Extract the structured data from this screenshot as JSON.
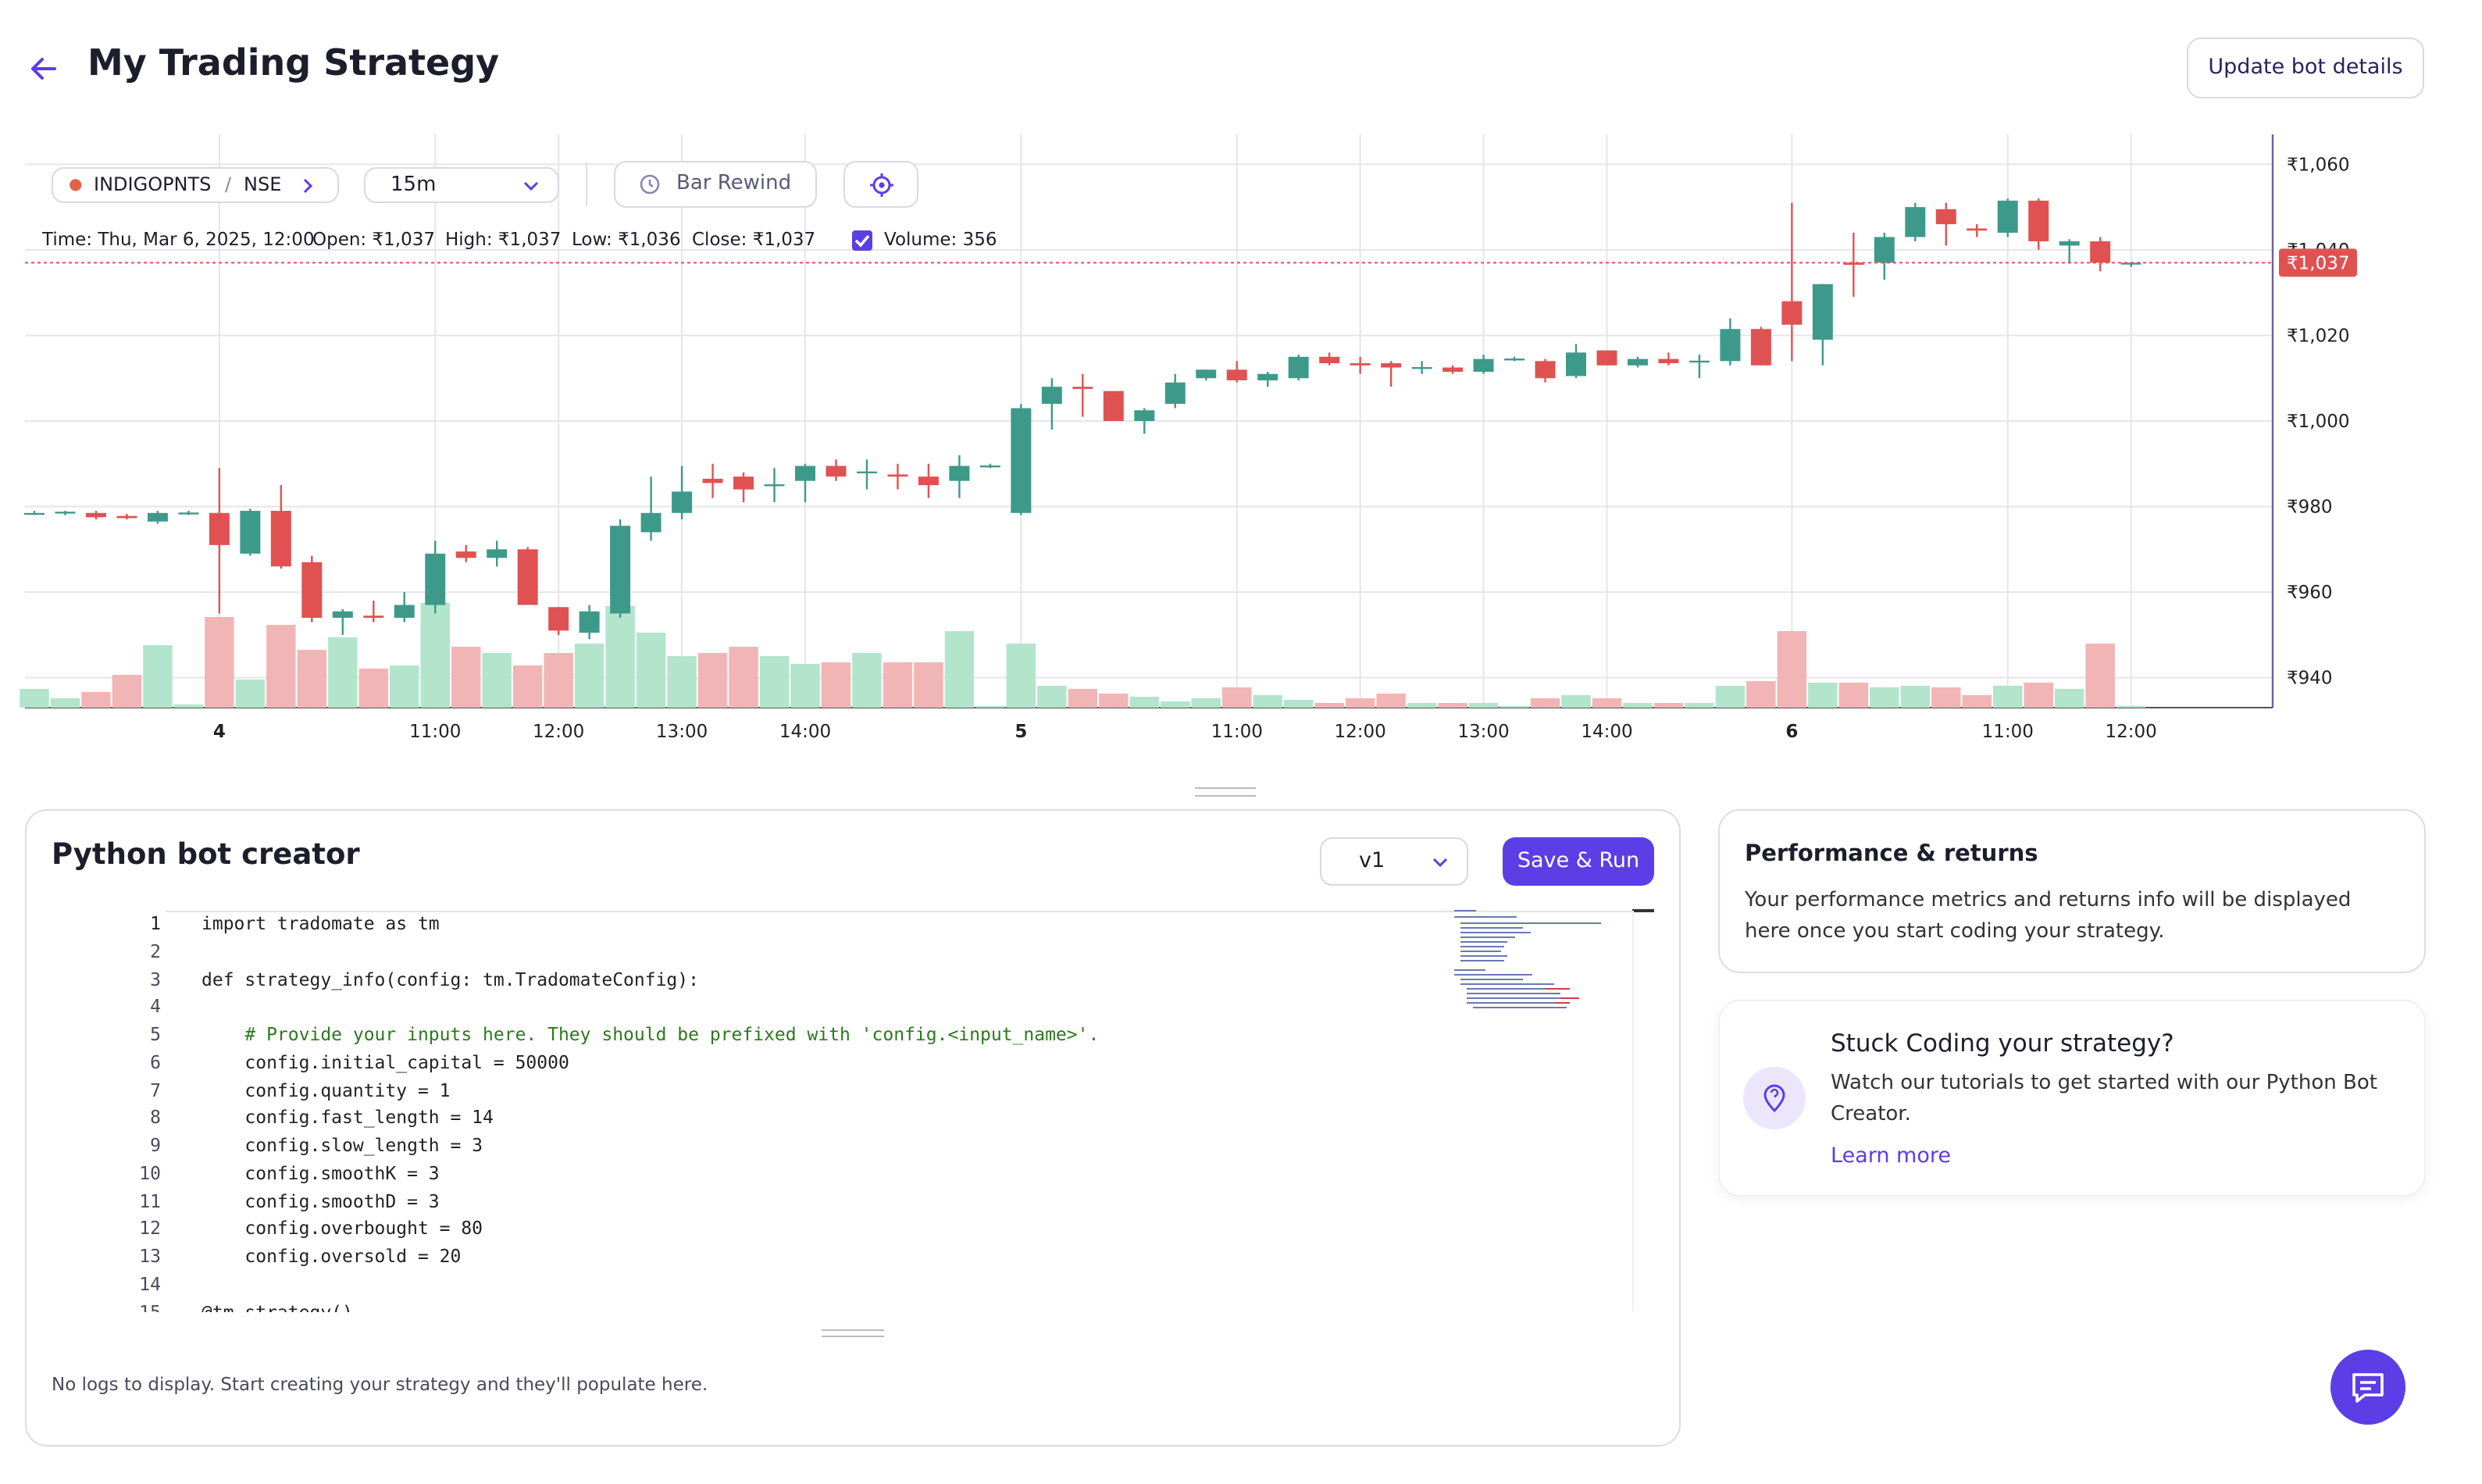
{
  "header": {
    "title": "My Trading Strategy",
    "button": "Update bot details"
  },
  "toolbar": {
    "symbol": "INDIGOPNTS",
    "exchange": "NSE",
    "interval": "15m",
    "rewind": "Bar Rewind"
  },
  "ohlc_info": {
    "time": "Time: Thu, Mar 6, 2025, 12:00",
    "open": "Open: ₹1,037",
    "high": "High: ₹1,037",
    "low": "Low: ₹1,036",
    "close": "Close: ₹1,037",
    "volume": "Volume: 356"
  },
  "chart_data": {
    "type": "candlestick",
    "categories": [
      null,
      null,
      null,
      null,
      null,
      null,
      "4",
      null,
      null,
      null,
      null,
      null,
      null,
      "11:00",
      null,
      null,
      null,
      "12:00",
      null,
      null,
      null,
      "13:00",
      null,
      null,
      null,
      "14:00",
      null,
      null,
      null,
      null,
      null,
      null,
      "5",
      null,
      null,
      null,
      null,
      null,
      null,
      "11:00",
      null,
      null,
      null,
      "12:00",
      null,
      null,
      null,
      "13:00",
      null,
      null,
      null,
      "14:00",
      null,
      null,
      null,
      null,
      null,
      "6",
      null,
      null,
      null,
      null,
      null,
      null,
      "11:00",
      null,
      null,
      null,
      "12:00"
    ],
    "open": [
      978.5,
      978.5,
      978.5,
      977.8,
      976.5,
      978.5,
      978.5,
      969,
      979,
      967,
      954,
      954.5,
      954,
      957,
      969.5,
      968,
      970,
      956.5,
      950.5,
      955,
      974,
      978.5,
      986.5,
      987,
      985,
      986,
      989.5,
      988,
      987.5,
      987,
      986,
      989.5,
      978.5,
      1004,
      1008,
      1007,
      1000,
      1004,
      1010,
      1012,
      1009.5,
      1010,
      1015,
      1013.5,
      1013.5,
      1012.5,
      1012.5,
      1011.5,
      1014.5,
      1014,
      1010.5,
      1016.5,
      1013,
      1014.5,
      1014,
      1014,
      1021.5,
      1028,
      1019,
      1037,
      1037,
      1043,
      1049.5,
      1045,
      1044,
      1051.5,
      1041,
      1042,
      1037
    ],
    "high": [
      979,
      979,
      979,
      978.3,
      979,
      979,
      989,
      979.5,
      985,
      968.5,
      956,
      958,
      960,
      972,
      971,
      972,
      970.5,
      956.5,
      957,
      977,
      987,
      989.5,
      990,
      988,
      989,
      990,
      991,
      991,
      990,
      990,
      992,
      990,
      1004,
      1010,
      1011,
      1007,
      1003,
      1011,
      1012,
      1014,
      1011.5,
      1015.5,
      1016,
      1015,
      1014,
      1014,
      1013,
      1015.5,
      1015,
      1014.5,
      1018,
      1016.5,
      1015,
      1016,
      1015.5,
      1024,
      1022,
      1051,
      1032,
      1044,
      1044,
      1051,
      1051,
      1046,
      1052,
      1052,
      1042.5,
      1043,
      1037
    ],
    "low": [
      978,
      978,
      977,
      977,
      976,
      978,
      955,
      968.5,
      965.5,
      953,
      950,
      953,
      953,
      955,
      967,
      966,
      957,
      950,
      949,
      954,
      972,
      977,
      982,
      981,
      981,
      981,
      986,
      984,
      984,
      982,
      982,
      989,
      978,
      998,
      1001,
      1000,
      997,
      1003,
      1009.5,
      1009,
      1008,
      1009.5,
      1013,
      1011,
      1008,
      1011,
      1011,
      1011,
      1014,
      1009,
      1010,
      1013,
      1012.5,
      1013,
      1010,
      1013,
      1013,
      1014,
      1013,
      1029,
      1033,
      1042,
      1041,
      1043,
      1043,
      1040,
      1037,
      1035,
      1036
    ],
    "close": [
      978.5,
      978.8,
      977.5,
      977.3,
      978.5,
      978.6,
      971,
      979,
      966,
      954,
      955.5,
      954,
      957,
      969,
      968,
      970,
      957,
      951,
      955.5,
      975.5,
      978.5,
      983.5,
      985.5,
      984,
      985.2,
      989.5,
      987,
      988.2,
      987,
      985,
      989.5,
      989.6,
      1003,
      1008,
      1007.5,
      1000,
      1002.5,
      1009,
      1012,
      1009.5,
      1011,
      1015,
      1013.5,
      1013,
      1012.5,
      1012.6,
      1011.5,
      1014.5,
      1014.6,
      1010,
      1016,
      1013,
      1014.5,
      1013.5,
      1014.1,
      1021.5,
      1013,
      1022.5,
      1032,
      1036.5,
      1043,
      1050,
      1046,
      1044.5,
      1051.5,
      1042,
      1042,
      1037,
      1037
    ],
    "volume": [
      3600,
      1800,
      3000,
      6300,
      12000,
      600,
      17400,
      5400,
      15900,
      11100,
      13500,
      7500,
      8100,
      20100,
      11700,
      10500,
      8100,
      10500,
      12300,
      19500,
      14400,
      9900,
      10500,
      11700,
      9900,
      8400,
      8700,
      10500,
      8700,
      8700,
      14700,
      300,
      12300,
      4200,
      3600,
      2700,
      2100,
      1200,
      1800,
      3900,
      2400,
      1500,
      900,
      1800,
      2700,
      900,
      900,
      900,
      300,
      1800,
      2400,
      1800,
      900,
      900,
      900,
      4200,
      5100,
      14700,
      4800,
      4800,
      3900,
      4200,
      3900,
      2400,
      4200,
      4800,
      3600,
      12300,
      356
    ],
    "ylim": [
      933,
      1067
    ],
    "yticks": [
      {
        "value": 940,
        "label": "₹940"
      },
      {
        "value": 960,
        "label": "₹960"
      },
      {
        "value": 980,
        "label": "₹980"
      },
      {
        "value": 1000,
        "label": "₹1,000"
      },
      {
        "value": 1020,
        "label": "₹1,020"
      },
      {
        "value": 1040,
        "label": "₹1,040"
      },
      {
        "value": 1060,
        "label": "₹1,060"
      }
    ],
    "last_price": {
      "value": 1037,
      "label": "₹1,037"
    },
    "up_color": "#3d9a8b",
    "down_color": "#e05252",
    "up_volume_color": "#b2e5cc",
    "down_volume_color": "#f2b5b5",
    "grid": true
  },
  "editor": {
    "title": "Python bot creator",
    "version": "v1",
    "run": "Save & Run",
    "lines": [
      {
        "n": 1,
        "text": "import tradomate as tm"
      },
      {
        "n": 2
      },
      {
        "n": 3,
        "text": "def strategy_info(config: tm.TradomateConfig):"
      },
      {
        "n": 4
      },
      {
        "n": 5,
        "text": "    # Provide your inputs here. They should be prefixed with 'config.<input_name>'."
      },
      {
        "n": 6,
        "text": "    config.initial_capital = 50000"
      },
      {
        "n": 7,
        "text": "    config.quantity = 1"
      },
      {
        "n": 8,
        "text": "    config.fast_length = 14"
      },
      {
        "n": 9,
        "text": "    config.slow_length = 3"
      },
      {
        "n": 10,
        "text": "    config.smoothK = 3"
      },
      {
        "n": 11,
        "text": "    config.smoothD = 3"
      },
      {
        "n": 12,
        "text": "    config.overbought = 80"
      },
      {
        "n": 13,
        "text": "    config.oversold = 20"
      },
      {
        "n": 14
      },
      {
        "n": 15,
        "text": "@tm.strategy()"
      }
    ]
  },
  "logs": "No logs to display. Start creating your strategy and they'll populate here.",
  "performance": {
    "title": "Performance & returns",
    "text": "Your performance metrics and returns info will be displayed here once you start coding your strategy."
  },
  "help": {
    "title": "Stuck Coding your strategy?",
    "text": "Watch our tutorials to get started with our Python Bot Creator.",
    "link": "Learn more"
  }
}
